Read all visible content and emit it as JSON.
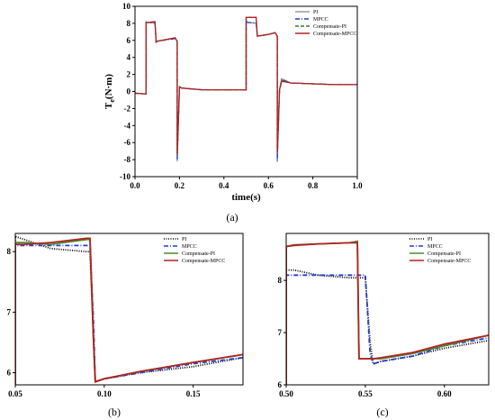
{
  "chart_data": [
    {
      "type": "line",
      "panel_label": "(a)",
      "xlabel": "time(s)",
      "ylabel": "Te(N·m)",
      "ylabel_main": "T",
      "ylabel_sub": "e",
      "ylabel_unit": "(N·m)",
      "xlim": [
        0,
        1.0
      ],
      "ylim": [
        -10,
        10
      ],
      "x_ticks": [
        "0.0",
        "0.2",
        "0.4",
        "0.6",
        "0.8",
        "1.0"
      ],
      "y_ticks": [
        "-10",
        "-8",
        "-6",
        "-4",
        "-2",
        "0",
        "2",
        "4",
        "6",
        "8",
        "10"
      ],
      "legend_position": "top-right",
      "series": [
        {
          "name": "PI",
          "color": "#9a9a9a",
          "dash": "solid",
          "x": [
            0,
            0.05,
            0.05,
            0.055,
            0.09,
            0.095,
            0.1,
            0.18,
            0.19,
            0.19,
            0.2,
            0.21,
            0.3,
            0.4,
            0.5,
            0.5,
            0.51,
            0.545,
            0.55,
            0.6,
            0.63,
            0.64,
            0.64,
            0.65,
            0.66,
            0.7,
            0.8,
            0.9,
            1.0
          ],
          "y": [
            -0.2,
            -0.3,
            8.2,
            8.1,
            8.0,
            5.8,
            5.9,
            6.3,
            5.9,
            -8.2,
            0.6,
            0.4,
            0.2,
            0.2,
            0.2,
            8.3,
            8.1,
            8.0,
            6.5,
            6.7,
            6.9,
            6.5,
            -8.3,
            0.2,
            1.5,
            1.0,
            0.9,
            0.8,
            0.8
          ]
        },
        {
          "name": "MPCC",
          "color": "#1f3fd6",
          "dash": "dashdot",
          "x": [
            0,
            0.05,
            0.05,
            0.055,
            0.09,
            0.095,
            0.1,
            0.18,
            0.19,
            0.19,
            0.2,
            0.21,
            0.3,
            0.4,
            0.5,
            0.5,
            0.51,
            0.545,
            0.55,
            0.6,
            0.63,
            0.64,
            0.64,
            0.65,
            0.66,
            0.7,
            0.8,
            0.9,
            1.0
          ],
          "y": [
            -0.2,
            -0.3,
            8.1,
            8.1,
            8.1,
            5.8,
            5.9,
            6.2,
            5.9,
            -8.0,
            0.5,
            0.4,
            0.2,
            0.2,
            0.2,
            8.1,
            8.1,
            8.1,
            6.5,
            6.7,
            6.9,
            6.5,
            -8.1,
            0.2,
            1.4,
            1.0,
            0.9,
            0.8,
            0.8
          ]
        },
        {
          "name": "Compensate-PI",
          "color": "#2e7d32",
          "dash": "dash",
          "x": [
            0,
            0.05,
            0.05,
            0.055,
            0.09,
            0.095,
            0.1,
            0.18,
            0.19,
            0.19,
            0.2,
            0.21,
            0.3,
            0.4,
            0.5,
            0.5,
            0.51,
            0.545,
            0.55,
            0.6,
            0.63,
            0.64,
            0.64,
            0.65,
            0.66,
            0.7,
            0.8,
            0.9,
            1.0
          ],
          "y": [
            -0.2,
            -0.3,
            8.1,
            8.1,
            8.2,
            5.8,
            5.9,
            6.3,
            5.9,
            -7.5,
            0.5,
            0.4,
            0.2,
            0.2,
            0.2,
            8.7,
            8.7,
            8.7,
            6.5,
            6.7,
            6.9,
            6.5,
            -7.3,
            0.2,
            1.3,
            1.0,
            0.9,
            0.8,
            0.8
          ]
        },
        {
          "name": "Compensate-MPCC",
          "color": "#b22222",
          "dash": "solid",
          "x": [
            0,
            0.05,
            0.05,
            0.055,
            0.09,
            0.095,
            0.1,
            0.18,
            0.19,
            0.19,
            0.2,
            0.21,
            0.3,
            0.4,
            0.5,
            0.5,
            0.51,
            0.545,
            0.55,
            0.6,
            0.63,
            0.64,
            0.64,
            0.65,
            0.66,
            0.7,
            0.8,
            0.9,
            1.0
          ],
          "y": [
            -0.2,
            -0.3,
            8.1,
            8.1,
            8.2,
            5.8,
            5.9,
            6.3,
            5.9,
            -7.3,
            0.5,
            0.4,
            0.2,
            0.2,
            0.2,
            8.7,
            8.7,
            8.7,
            6.5,
            6.7,
            6.9,
            6.5,
            -7.1,
            0.2,
            1.2,
            1.0,
            0.9,
            0.8,
            0.8
          ]
        }
      ]
    },
    {
      "type": "line",
      "panel_label": "(b)",
      "xlim": [
        0.05,
        0.178
      ],
      "ylim": [
        5.8,
        8.3
      ],
      "x_ticks": [
        0.05,
        0.1,
        0.15
      ],
      "x_tick_labels": [
        "0.05",
        "0.10",
        "0.15"
      ],
      "y_ticks": [
        6,
        7,
        8
      ],
      "y_tick_labels": [
        "6",
        "7",
        "8"
      ],
      "legend_position": "top-right",
      "series": [
        {
          "name": "PI",
          "color": "#000000",
          "dash": "dot",
          "x": [
            0.05,
            0.05,
            0.055,
            0.07,
            0.09,
            0.092,
            0.094,
            0.095,
            0.1,
            0.12,
            0.15,
            0.178
          ],
          "y": [
            5.8,
            8.25,
            8.2,
            8.05,
            8.0,
            8.0,
            6.5,
            5.85,
            5.9,
            6.0,
            6.1,
            6.25
          ]
        },
        {
          "name": "MPCC",
          "color": "#1f3fd6",
          "dash": "dashdot",
          "x": [
            0.05,
            0.05,
            0.055,
            0.07,
            0.09,
            0.092,
            0.094,
            0.095,
            0.1,
            0.12,
            0.15,
            0.178
          ],
          "y": [
            5.8,
            8.1,
            8.1,
            8.1,
            8.1,
            8.1,
            6.8,
            5.85,
            5.9,
            6.0,
            6.15,
            6.25
          ]
        },
        {
          "name": "Compensate-PI",
          "color": "#4c8a2a",
          "dash": "solid",
          "x": [
            0.05,
            0.05,
            0.055,
            0.07,
            0.09,
            0.092,
            0.094,
            0.095,
            0.1,
            0.12,
            0.15,
            0.178
          ],
          "y": [
            5.8,
            8.15,
            8.15,
            8.12,
            8.2,
            8.2,
            6.5,
            5.85,
            5.9,
            6.02,
            6.17,
            6.3
          ]
        },
        {
          "name": "Compensate-MPCC",
          "color": "#b22222",
          "dash": "solid",
          "x": [
            0.05,
            0.05,
            0.055,
            0.07,
            0.09,
            0.092,
            0.094,
            0.095,
            0.1,
            0.12,
            0.15,
            0.178
          ],
          "y": [
            5.8,
            8.12,
            8.12,
            8.15,
            8.22,
            8.22,
            6.5,
            5.85,
            5.9,
            6.02,
            6.17,
            6.3
          ]
        }
      ]
    },
    {
      "type": "line",
      "panel_label": "(c)",
      "xlim": [
        0.5,
        0.628
      ],
      "ylim": [
        6.0,
        8.9
      ],
      "x_ticks": [
        0.5,
        0.55,
        0.6
      ],
      "x_tick_labels": [
        "0.50",
        "0.55",
        "0.60"
      ],
      "y_ticks": [
        6,
        7,
        8
      ],
      "y_tick_labels": [
        "6",
        "7",
        "8"
      ],
      "legend_position": "top-right",
      "series": [
        {
          "name": "PI",
          "color": "#000000",
          "dash": "dot",
          "x": [
            0.5,
            0.5,
            0.505,
            0.52,
            0.54,
            0.545,
            0.55,
            0.553,
            0.555,
            0.56,
            0.58,
            0.6,
            0.628
          ],
          "y": [
            6.0,
            8.2,
            8.2,
            8.1,
            8.05,
            8.05,
            8.05,
            6.8,
            6.4,
            6.45,
            6.55,
            6.7,
            6.85
          ]
        },
        {
          "name": "MPCC",
          "color": "#1f3fd6",
          "dash": "dashdot",
          "x": [
            0.5,
            0.5,
            0.505,
            0.52,
            0.54,
            0.545,
            0.55,
            0.553,
            0.555,
            0.56,
            0.58,
            0.6,
            0.628
          ],
          "y": [
            6.0,
            8.1,
            8.1,
            8.1,
            8.1,
            8.1,
            8.1,
            6.6,
            6.4,
            6.45,
            6.55,
            6.75,
            6.9
          ]
        },
        {
          "name": "Compensate-PI",
          "color": "#4c8a2a",
          "dash": "solid",
          "x": [
            0.5,
            0.5,
            0.505,
            0.52,
            0.54,
            0.545,
            0.546,
            0.548,
            0.555,
            0.56,
            0.58,
            0.6,
            0.628
          ],
          "y": [
            6.0,
            8.65,
            8.68,
            8.7,
            8.72,
            8.75,
            6.5,
            6.5,
            6.5,
            6.5,
            6.6,
            6.75,
            6.95
          ]
        },
        {
          "name": "Compensate-MPCC",
          "color": "#b22222",
          "dash": "solid",
          "x": [
            0.5,
            0.5,
            0.505,
            0.52,
            0.54,
            0.545,
            0.546,
            0.548,
            0.555,
            0.56,
            0.58,
            0.6,
            0.628
          ],
          "y": [
            6.0,
            8.65,
            8.67,
            8.7,
            8.72,
            8.72,
            6.5,
            6.5,
            6.5,
            6.52,
            6.62,
            6.78,
            6.95
          ]
        }
      ]
    }
  ]
}
